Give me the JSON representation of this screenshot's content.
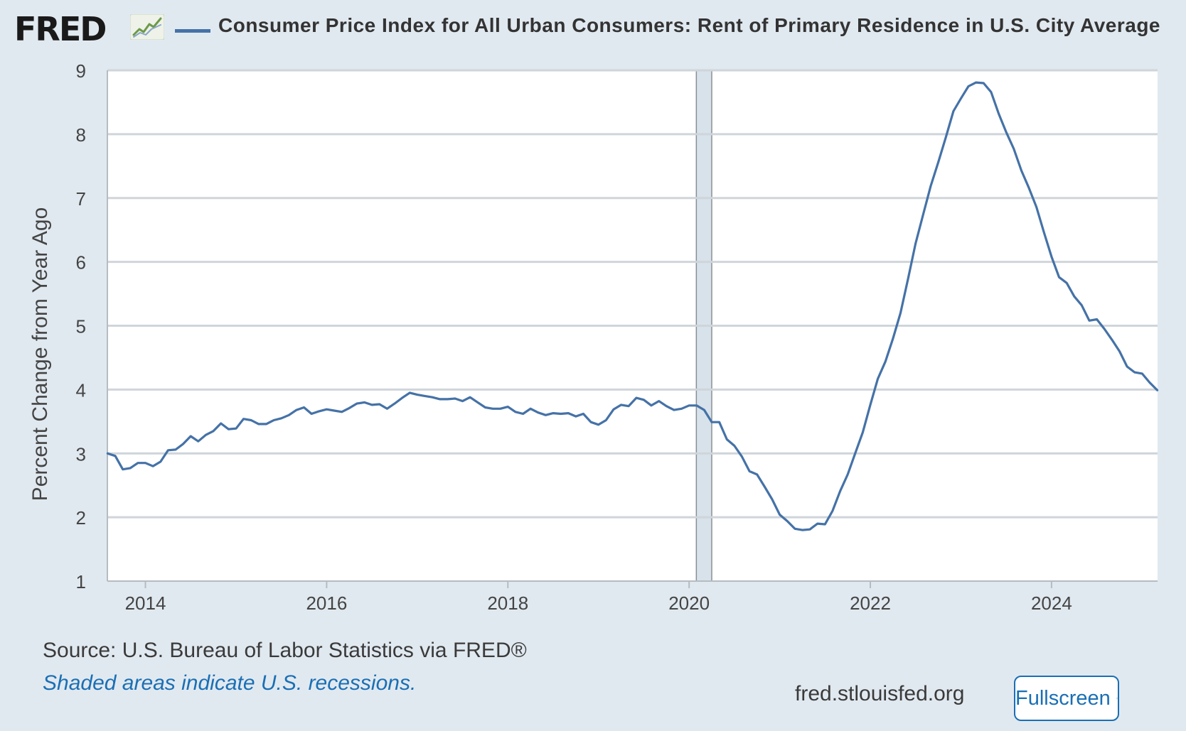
{
  "header": {
    "logo_text": "FRED",
    "logo_icon": "trend-chart-icon"
  },
  "chart_data": {
    "type": "line",
    "title": "Consumer Price Index for All Urban Consumers: Rent of Primary Residence in U.S. City Average",
    "ylabel": "Percent Change from Year Ago",
    "xlabel": "",
    "xlim": [
      2013.58,
      2025.17
    ],
    "ylim": [
      1,
      9
    ],
    "y_ticks": [
      1,
      2,
      3,
      4,
      5,
      6,
      7,
      8,
      9
    ],
    "x_ticks": [
      2014,
      2016,
      2018,
      2020,
      2022,
      2024
    ],
    "x_tick_labels": [
      "2014",
      "2016",
      "2018",
      "2020",
      "2022",
      "2024"
    ],
    "grid": "horizontal",
    "recessions": [
      [
        2020.08,
        2020.25
      ]
    ],
    "series": [
      {
        "name": "Consumer Price Index for All Urban Consumers: Rent of Primary Residence in U.S. City Average",
        "color": "#4572a7",
        "x": [
          2013.583,
          2013.667,
          2013.75,
          2013.833,
          2013.917,
          2014.0,
          2014.083,
          2014.167,
          2014.25,
          2014.333,
          2014.417,
          2014.5,
          2014.583,
          2014.667,
          2014.75,
          2014.833,
          2014.917,
          2015.0,
          2015.083,
          2015.167,
          2015.25,
          2015.333,
          2015.417,
          2015.5,
          2015.583,
          2015.667,
          2015.75,
          2015.833,
          2015.917,
          2016.0,
          2016.083,
          2016.167,
          2016.25,
          2016.333,
          2016.417,
          2016.5,
          2016.583,
          2016.667,
          2016.75,
          2016.833,
          2016.917,
          2017.0,
          2017.083,
          2017.167,
          2017.25,
          2017.333,
          2017.417,
          2017.5,
          2017.583,
          2017.667,
          2017.75,
          2017.833,
          2017.917,
          2018.0,
          2018.083,
          2018.167,
          2018.25,
          2018.333,
          2018.417,
          2018.5,
          2018.583,
          2018.667,
          2018.75,
          2018.833,
          2018.917,
          2019.0,
          2019.083,
          2019.167,
          2019.25,
          2019.333,
          2019.417,
          2019.5,
          2019.583,
          2019.667,
          2019.75,
          2019.833,
          2019.917,
          2020.0,
          2020.083,
          2020.167,
          2020.25,
          2020.333,
          2020.417,
          2020.5,
          2020.583,
          2020.667,
          2020.75,
          2020.833,
          2020.917,
          2021.0,
          2021.083,
          2021.167,
          2021.25,
          2021.333,
          2021.417,
          2021.5,
          2021.583,
          2021.667,
          2021.75,
          2021.833,
          2021.917,
          2022.0,
          2022.083,
          2022.167,
          2022.25,
          2022.333,
          2022.417,
          2022.5,
          2022.583,
          2022.667,
          2022.75,
          2022.833,
          2022.917,
          2023.0,
          2023.083,
          2023.167,
          2023.25,
          2023.333,
          2023.417,
          2023.5,
          2023.583,
          2023.667,
          2023.75,
          2023.833,
          2023.917,
          2024.0,
          2024.083,
          2024.167,
          2024.25,
          2024.333,
          2024.417,
          2024.5,
          2024.583,
          2024.667,
          2024.75,
          2024.833,
          2024.917,
          2025.0,
          2025.083,
          2025.167
        ],
        "values": [
          3.0,
          2.96,
          2.75,
          2.77,
          2.85,
          2.85,
          2.8,
          2.87,
          3.05,
          3.06,
          3.15,
          3.27,
          3.19,
          3.29,
          3.35,
          3.47,
          3.38,
          3.39,
          3.54,
          3.52,
          3.46,
          3.46,
          3.52,
          3.55,
          3.6,
          3.68,
          3.72,
          3.62,
          3.66,
          3.69,
          3.67,
          3.65,
          3.71,
          3.78,
          3.8,
          3.76,
          3.77,
          3.7,
          3.78,
          3.87,
          3.95,
          3.92,
          3.9,
          3.88,
          3.85,
          3.85,
          3.86,
          3.82,
          3.88,
          3.8,
          3.72,
          3.7,
          3.7,
          3.73,
          3.65,
          3.62,
          3.7,
          3.64,
          3.6,
          3.63,
          3.62,
          3.63,
          3.58,
          3.62,
          3.49,
          3.45,
          3.52,
          3.69,
          3.76,
          3.74,
          3.87,
          3.84,
          3.75,
          3.82,
          3.74,
          3.68,
          3.7,
          3.75,
          3.75,
          3.68,
          3.49,
          3.49,
          3.22,
          3.12,
          2.95,
          2.72,
          2.67,
          2.48,
          2.28,
          2.04,
          1.94,
          1.82,
          1.8,
          1.81,
          1.9,
          1.89,
          2.1,
          2.41,
          2.67,
          3.0,
          3.33,
          3.76,
          4.17,
          4.44,
          4.8,
          5.2,
          5.74,
          6.29,
          6.74,
          7.19,
          7.56,
          7.95,
          8.36,
          8.56,
          8.75,
          8.81,
          8.8,
          8.66,
          8.32,
          8.03,
          7.77,
          7.43,
          7.16,
          6.86,
          6.46,
          6.08,
          5.76,
          5.67,
          5.46,
          5.32,
          5.08,
          5.1,
          4.95,
          4.78,
          4.6,
          4.36,
          4.27,
          4.25,
          4.11,
          3.99
        ]
      }
    ]
  },
  "footer": {
    "source": "Source: U.S. Bureau of Labor Statistics via FRED®",
    "recession_note": "Shaded areas indicate U.S. recessions.",
    "site": "fred.stlouisfed.org",
    "fullscreen_label": "Fullscreen"
  },
  "colors": {
    "background": "#e1e9f0",
    "plot_background": "#ffffff",
    "series": "#4572a7",
    "recession": "#d8e2ea",
    "link": "#1a6fb4",
    "grid": "#cfd5da"
  }
}
